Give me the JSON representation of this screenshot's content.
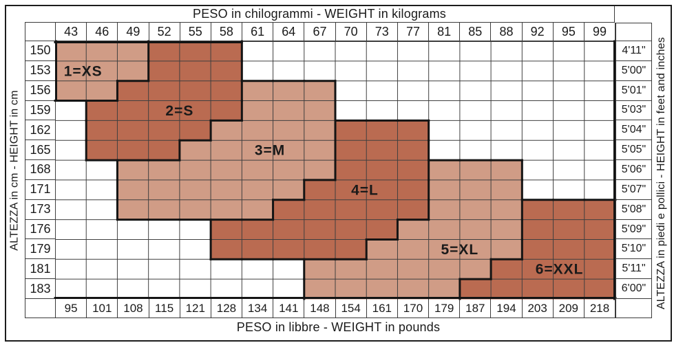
{
  "chart_data": {
    "type": "heatmap",
    "title_top": "PESO in chilogrammi - WEIGHT in kilograms",
    "title_bottom": "PESO in libbre - WEIGHT in pounds",
    "axis_left": "ALTEZZA in cm - HEIGHT in cm",
    "axis_right": "ALTEZZA in piedi e pollici - HEIGHT in feet and inches",
    "x_top_kg": [
      43,
      46,
      49,
      52,
      55,
      58,
      61,
      64,
      67,
      70,
      73,
      77,
      81,
      85,
      88,
      92,
      95,
      99
    ],
    "x_bottom_lb": [
      95,
      101,
      108,
      115,
      121,
      128,
      134,
      141,
      148,
      154,
      161,
      170,
      179,
      187,
      194,
      203,
      209,
      218
    ],
    "y_left_cm": [
      150,
      153,
      156,
      159,
      162,
      165,
      168,
      171,
      173,
      176,
      179,
      181,
      183
    ],
    "y_right_ft": [
      "4'11\"",
      "5'00\"",
      "5'01\"",
      "5'03\"",
      "5'04\"",
      "5'05\"",
      "5'06\"",
      "5'07\"",
      "5'08\"",
      "5'09\"",
      "5'10\"",
      "5'11\"",
      "6'00\""
    ],
    "sizes": [
      {
        "code": 1,
        "name": "XS",
        "label": "1=XS",
        "shade": "light",
        "label_col": 0.9,
        "label_row": 1.5
      },
      {
        "code": 2,
        "name": "S",
        "label": "2=S",
        "shade": "dark",
        "label_col": 4.0,
        "label_row": 3.5
      },
      {
        "code": 3,
        "name": "M",
        "label": "3=M",
        "shade": "light",
        "label_col": 6.9,
        "label_row": 5.5
      },
      {
        "code": 4,
        "name": "L",
        "label": "4=L",
        "shade": "dark",
        "label_col": 9.95,
        "label_row": 7.5
      },
      {
        "code": 5,
        "name": "XL",
        "label": "5=XL",
        "shade": "light",
        "label_col": 13.0,
        "label_row": 10.5
      },
      {
        "code": 6,
        "name": "XXL",
        "label": "6=XXL",
        "shade": "dark",
        "label_col": 16.2,
        "label_row": 11.5
      }
    ],
    "cells": [
      [
        1,
        1,
        1,
        2,
        2,
        2,
        0,
        0,
        0,
        0,
        0,
        0,
        0,
        0,
        0,
        0,
        0,
        0
      ],
      [
        1,
        1,
        1,
        2,
        2,
        2,
        0,
        0,
        0,
        0,
        0,
        0,
        0,
        0,
        0,
        0,
        0,
        0
      ],
      [
        1,
        1,
        2,
        2,
        2,
        2,
        3,
        3,
        3,
        0,
        0,
        0,
        0,
        0,
        0,
        0,
        0,
        0
      ],
      [
        0,
        2,
        2,
        2,
        2,
        2,
        3,
        3,
        3,
        0,
        0,
        0,
        0,
        0,
        0,
        0,
        0,
        0
      ],
      [
        0,
        2,
        2,
        2,
        2,
        3,
        3,
        3,
        3,
        4,
        4,
        4,
        0,
        0,
        0,
        0,
        0,
        0
      ],
      [
        0,
        2,
        2,
        2,
        3,
        3,
        3,
        3,
        3,
        4,
        4,
        4,
        0,
        0,
        0,
        0,
        0,
        0
      ],
      [
        0,
        0,
        3,
        3,
        3,
        3,
        3,
        3,
        3,
        4,
        4,
        4,
        5,
        5,
        5,
        0,
        0,
        0
      ],
      [
        0,
        0,
        3,
        3,
        3,
        3,
        3,
        3,
        4,
        4,
        4,
        4,
        5,
        5,
        5,
        0,
        0,
        0
      ],
      [
        0,
        0,
        3,
        3,
        3,
        3,
        3,
        4,
        4,
        4,
        4,
        4,
        5,
        5,
        5,
        6,
        6,
        6
      ],
      [
        0,
        0,
        0,
        0,
        0,
        4,
        4,
        4,
        4,
        4,
        4,
        5,
        5,
        5,
        5,
        6,
        6,
        6
      ],
      [
        0,
        0,
        0,
        0,
        0,
        4,
        4,
        4,
        4,
        4,
        5,
        5,
        5,
        5,
        5,
        6,
        6,
        6
      ],
      [
        0,
        0,
        0,
        0,
        0,
        0,
        0,
        0,
        5,
        5,
        5,
        5,
        5,
        5,
        6,
        6,
        6,
        6
      ],
      [
        0,
        0,
        0,
        0,
        0,
        0,
        0,
        0,
        5,
        5,
        5,
        5,
        5,
        6,
        6,
        6,
        6,
        6
      ]
    ]
  },
  "colors": {
    "light": "#D09C86",
    "dark": "#BA6B51",
    "outline": "#141414",
    "grid_line": "#3f3f3f",
    "text": "#1a1a1a"
  }
}
